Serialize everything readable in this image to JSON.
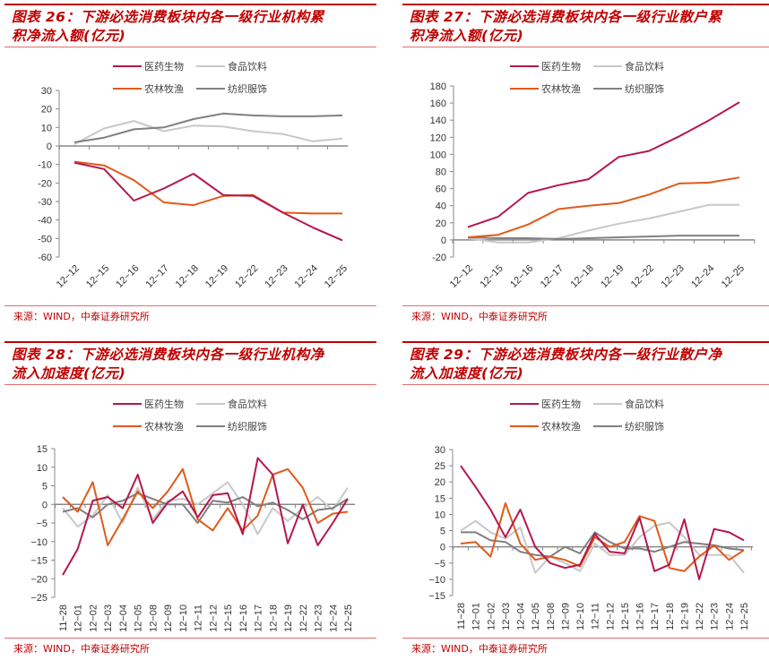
{
  "colors": {
    "医药生物": "#b5174b",
    "食品饮料": "#c8c8c8",
    "农林牧渔": "#e05a1a",
    "纺织服饰": "#808080",
    "title": "#c00000"
  },
  "source_text": "来源：WIND，中泰证券研究所",
  "chart_data": [
    {
      "id": "c26",
      "type": "line",
      "title": "图表 26：下游必选消费板块内各一级行业机构累积净流入额(亿元)",
      "title_line1": "图表 26：下游必选消费板块内各一级行业机构累",
      "title_line2": "积净流入额(亿元)",
      "legend": [
        "医药生物",
        "食品饮料",
        "农林牧渔",
        "纺织服饰"
      ],
      "categories": [
        "12-12",
        "12-15",
        "12-16",
        "12-17",
        "12-18",
        "12-19",
        "12-22",
        "12-23",
        "12-24",
        "12-25"
      ],
      "yticks": [
        30,
        20,
        10,
        0,
        -10,
        -20,
        -30,
        -40,
        -50,
        -60
      ],
      "ylim": [
        -60,
        30
      ],
      "xlabel_rotation": "diagonal",
      "series": [
        {
          "name": "医药生物",
          "values": [
            -9,
            -12.5,
            -29.5,
            -23,
            -15,
            -26.5,
            -27,
            -36,
            -44,
            -51
          ]
        },
        {
          "name": "食品饮料",
          "values": [
            1,
            9.5,
            13.5,
            8,
            11,
            10.5,
            8,
            6.5,
            2.5,
            4
          ]
        },
        {
          "name": "农林牧渔",
          "values": [
            -8.5,
            -10.5,
            -18.5,
            -30.5,
            -32,
            -27,
            -26.5,
            -36,
            -36.5,
            -36.5
          ]
        },
        {
          "name": "纺织服饰",
          "values": [
            2,
            4.5,
            9,
            10,
            14.5,
            17.5,
            16.5,
            16,
            16,
            16.5
          ]
        }
      ]
    },
    {
      "id": "c27",
      "type": "line",
      "title": "图表 27：下游必选消费板块内各一级行业散户累积净流入额(亿元)",
      "title_line1": "图表 27：下游必选消费板块内各一级行业散户累",
      "title_line2": "积净流入额(亿元)",
      "legend": [
        "医药生物",
        "食品饮料",
        "农林牧渔",
        "纺织服饰"
      ],
      "categories": [
        "12-12",
        "12-15",
        "12-16",
        "12-17",
        "12-18",
        "12-19",
        "12-22",
        "12-23",
        "12-24",
        "12-25"
      ],
      "yticks": [
        180,
        160,
        140,
        120,
        100,
        80,
        60,
        40,
        20,
        0,
        -20
      ],
      "ylim": [
        -20,
        180
      ],
      "xlabel_rotation": "diagonal",
      "series": [
        {
          "name": "医药生物",
          "values": [
            15,
            27,
            55,
            64,
            71,
            97,
            104,
            121,
            140,
            161
          ]
        },
        {
          "name": "食品饮料",
          "values": [
            2,
            -3,
            -3,
            2,
            11,
            19,
            25,
            33,
            41,
            41
          ]
        },
        {
          "name": "农林牧渔",
          "values": [
            3,
            6,
            18,
            36,
            40,
            43,
            53,
            66,
            67,
            73
          ]
        },
        {
          "name": "纺织服饰",
          "values": [
            3,
            2,
            2,
            1,
            2,
            3,
            4,
            5,
            5,
            5
          ]
        }
      ]
    },
    {
      "id": "c28",
      "type": "line",
      "title": "图表 28：下游必选消费板块内各一级行业机构净流入加速度(亿元)",
      "title_line1": "图表 28：下游必选消费板块内各一级行业机构净",
      "title_line2": "流入加速度(亿元)",
      "legend": [
        "医药生物",
        "食品饮料",
        "农林牧渔",
        "纺织服饰"
      ],
      "categories": [
        "11-28",
        "12-01",
        "12-02",
        "12-03",
        "12-04",
        "12-05",
        "12-08",
        "12-09",
        "12-10",
        "12-11",
        "12-12",
        "12-15",
        "12-16",
        "12-17",
        "12-18",
        "12-19",
        "12-22",
        "12-23",
        "12-24",
        "12-25"
      ],
      "yticks": [
        15,
        10,
        5,
        0,
        -5,
        -10,
        -15,
        -20,
        -25
      ],
      "ytick_labels": [
        "15",
        "10",
        "5",
        "0",
        "−5",
        "−10",
        "−15",
        "−20",
        "−25"
      ],
      "ylim": [
        -25,
        15
      ],
      "xlabel_rotation": "vertical",
      "series": [
        {
          "name": "医药生物",
          "values": [
            -19,
            -12,
            1,
            2,
            -1,
            8,
            -5,
            0.5,
            3.5,
            -3.5,
            2.5,
            3,
            -8,
            12.5,
            8,
            -10.5,
            0,
            -11,
            -5,
            1.5
          ]
        },
        {
          "name": "食品饮料",
          "values": [
            -1,
            -6,
            -3,
            2.5,
            -5,
            4.5,
            -4,
            1,
            1.5,
            0,
            3,
            6,
            0,
            -8,
            -1,
            -4.5,
            -1,
            2,
            -1.5,
            4.5
          ]
        },
        {
          "name": "农林牧渔",
          "values": [
            2,
            -2,
            6,
            -11,
            -4,
            3.5,
            -1,
            3.5,
            9.5,
            -4,
            -7,
            -1,
            -7,
            -3,
            8,
            9.5,
            4.5,
            -5,
            -2.5,
            -2
          ]
        },
        {
          "name": "纺织服饰",
          "values": [
            -2,
            -1,
            -3.5,
            0,
            1,
            3,
            1.5,
            0,
            0,
            -5,
            1,
            0.5,
            2,
            -0.5,
            0.5,
            -1.5,
            -4,
            -1.5,
            -1,
            1.5
          ]
        }
      ]
    },
    {
      "id": "c29",
      "type": "line",
      "title": "图表 29：下游必选消费板块内各一级行业散户净流入加速度(亿元)",
      "title_line1": "图表 29：下游必选消费板块内各一级行业散户净",
      "title_line2": "流入加速度(亿元)",
      "legend": [
        "医药生物",
        "食品饮料",
        "农林牧渔",
        "纺织服饰"
      ],
      "categories": [
        "11-28",
        "12-01",
        "12-02",
        "12-03",
        "12-04",
        "12-05",
        "12-08",
        "12-09",
        "12-10",
        "12-11",
        "12-12",
        "12-15",
        "12-16",
        "12-17",
        "12-18",
        "12-19",
        "12-22",
        "12-23",
        "12-24",
        "12-25"
      ],
      "yticks": [
        30,
        25,
        20,
        15,
        10,
        5,
        0,
        -5,
        -10,
        -15
      ],
      "ytick_labels": [
        "30",
        "25",
        "20",
        "15",
        "10",
        "5",
        "0",
        "−5",
        "−10",
        "−15"
      ],
      "ylim": [
        -15,
        30
      ],
      "xlabel_rotation": "vertical",
      "series": [
        {
          "name": "医药生物",
          "values": [
            25,
            18.5,
            11.5,
            3,
            11.5,
            0,
            -5,
            -6.5,
            -5.5,
            4,
            -1.5,
            -2,
            9,
            -7.5,
            -5.5,
            8.5,
            -10,
            5.5,
            4.5,
            2
          ]
        },
        {
          "name": "食品饮料",
          "values": [
            5,
            8,
            4.5,
            2.5,
            6,
            -8,
            -3,
            -5,
            -7.5,
            1,
            -2.5,
            -2.5,
            3,
            6.5,
            7.5,
            3,
            -2.5,
            -2.5,
            -2.5,
            -8
          ]
        },
        {
          "name": "农林牧渔",
          "values": [
            1,
            1.5,
            -3,
            13.5,
            1,
            -4,
            -3,
            -4,
            -6,
            3,
            0,
            1.5,
            9.5,
            8,
            -6.5,
            -7.5,
            -3,
            0.5,
            -4,
            -1
          ]
        },
        {
          "name": "纺织服饰",
          "values": [
            4.5,
            4.5,
            2,
            1.5,
            -1.5,
            -2.5,
            -3,
            0,
            -2,
            4.5,
            1.5,
            -0.5,
            -0.5,
            -1.5,
            0,
            1.5,
            1,
            0.5,
            -0.5,
            -1
          ]
        }
      ]
    }
  ]
}
